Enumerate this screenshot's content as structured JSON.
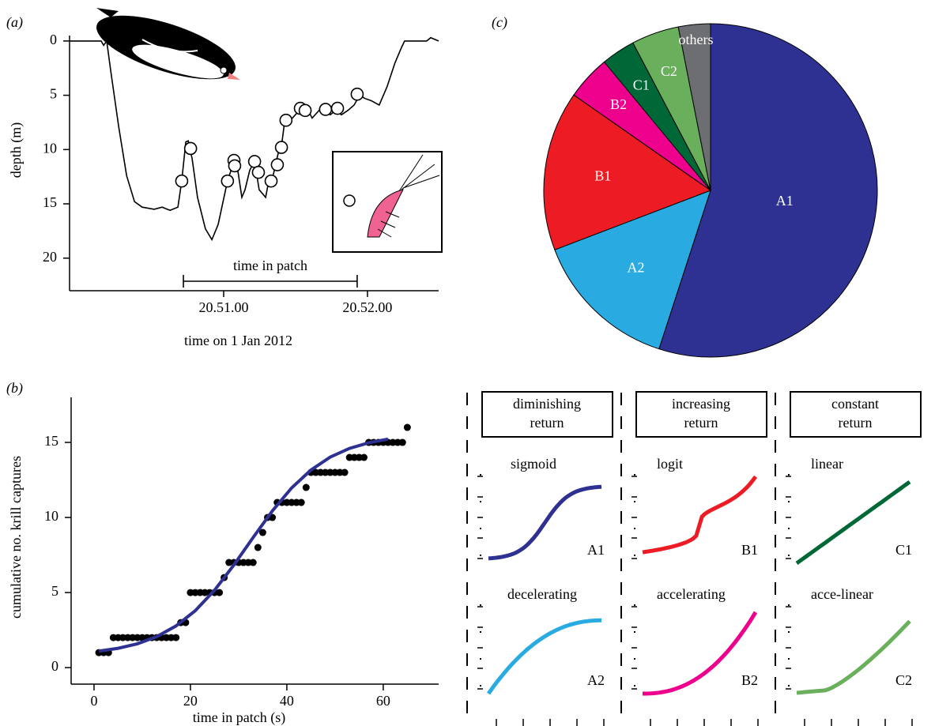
{
  "chart_data": [
    {
      "type": "line",
      "panel_label": "(a)",
      "x_label": "time on 1 Jan 2012",
      "y_label": "depth (m)",
      "y_inverted": true,
      "color": "#000000",
      "xlim": [
        -4.3,
        149.7
      ],
      "ylim": [
        -0.5,
        23
      ],
      "xticks": [
        {
          "value": 60,
          "label": "20.51.00"
        },
        {
          "value": 120,
          "label": "20.52.00"
        }
      ],
      "yticks": [
        0,
        5,
        10,
        15,
        20
      ],
      "x": [
        -4.3,
        8.9,
        9.9,
        11.2,
        12.9,
        16.2,
        19.5,
        22.8,
        26.0,
        31.0,
        34.3,
        37.6,
        40.9,
        42.5,
        44.2,
        45.2,
        46.8,
        49.1,
        52.4,
        55.1,
        57.7,
        61.6,
        64.3,
        65.6,
        67.6,
        68.9,
        70.9,
        72.9,
        74.8,
        77.5,
        78.8,
        80.4,
        82.7,
        84.1,
        85.4,
        86.7,
        88.7,
        90.7,
        92.0,
        93.6,
        95.3,
        96.9,
        100.2,
        102.2,
        104.5,
        107.1,
        109.1,
        111.8,
        114.4,
        116.7,
        119.0,
        121.6,
        124.9,
        128.2,
        131.5,
        134.2,
        135.5,
        144.7,
        146.4,
        149.7
      ],
      "values": [
        0,
        0,
        0.4,
        0,
        2.8,
        7.9,
        12.4,
        14.8,
        15.3,
        15.5,
        15.3,
        15.6,
        15.3,
        12.9,
        9.3,
        9.2,
        10.8,
        14.4,
        17.3,
        18.3,
        16.9,
        12.9,
        11.1,
        11.5,
        14.4,
        13.7,
        11.9,
        11.1,
        13.7,
        14.4,
        12.9,
        12.6,
        10.4,
        9.7,
        7.5,
        7.1,
        7.1,
        6.6,
        6.3,
        6.5,
        6.4,
        7.1,
        6.3,
        6.5,
        6.8,
        6.3,
        6.8,
        6.4,
        5.9,
        5.0,
        5.3,
        5.5,
        5.9,
        4.2,
        2.0,
        0.6,
        0,
        0,
        -0.3,
        0
      ],
      "captures": {
        "x": [
          42.5,
          46.2,
          61.6,
          64.3,
          64.6,
          72.9,
          74.5,
          79.8,
          82.4,
          84.1,
          86.0,
          92.0,
          94.0,
          102.5,
          107.5,
          115.7
        ],
        "values": [
          12.9,
          9.9,
          12.9,
          11.0,
          11.5,
          11.1,
          12.1,
          12.9,
          11.4,
          9.8,
          7.3,
          6.2,
          6.4,
          6.3,
          6.2,
          4.9
        ]
      },
      "annotation": "time in patch",
      "annotation_range": [
        43.2,
        115.7
      ]
    },
    {
      "type": "scatter",
      "panel_label": "(b)",
      "x_label": "time in patch (s)",
      "y_label": "cumulative no. krill captures",
      "color": "#000000",
      "xlim": [
        -4.75,
        71.5
      ],
      "ylim": [
        -1.1,
        18
      ],
      "xticks": [
        0,
        20,
        40,
        60
      ],
      "yticks": [
        0,
        5,
        10,
        15
      ],
      "x": [
        1,
        2,
        3,
        4,
        5,
        6,
        7,
        8,
        9,
        10,
        11,
        12,
        13,
        14,
        15,
        16,
        17,
        18,
        19,
        20,
        21,
        22,
        23,
        24,
        25,
        26,
        27,
        28,
        29,
        30,
        31,
        32,
        33,
        34,
        35,
        36,
        37,
        38,
        39,
        40,
        41,
        42,
        43,
        44,
        45,
        46,
        47,
        48,
        49,
        50,
        51,
        52,
        53,
        54,
        55,
        56,
        57,
        58,
        59,
        60,
        61,
        62,
        63,
        64,
        65
      ],
      "values": [
        1,
        1,
        1,
        2,
        2,
        2,
        2,
        2,
        2,
        2,
        2,
        2,
        2,
        2,
        2,
        2,
        2,
        3,
        3,
        5,
        5,
        5,
        5,
        5,
        5,
        5,
        6,
        7,
        7,
        7,
        7,
        7,
        7,
        8,
        9,
        10,
        10,
        11,
        11,
        11,
        11,
        11,
        11,
        12,
        13,
        13,
        13,
        13,
        13,
        13,
        13,
        13,
        14,
        14,
        14,
        14,
        15,
        15,
        15,
        15,
        15,
        15,
        15,
        15,
        16
      ],
      "fit": {
        "color": "#2e3192",
        "x": [
          1,
          5,
          9,
          13,
          17,
          21,
          25,
          29,
          33,
          37,
          41,
          45,
          49,
          53,
          57,
          61
        ],
        "values": [
          1.1,
          1.29,
          1.59,
          2.06,
          2.77,
          3.79,
          5.15,
          6.83,
          8.66,
          10.44,
          11.97,
          13.16,
          14.02,
          14.6,
          14.98,
          15.22
        ]
      }
    },
    {
      "type": "pie",
      "panel_label": "(c)",
      "categories": [
        "A1",
        "A2",
        "B1",
        "B2",
        "C1",
        "C2",
        "others"
      ],
      "values": [
        55,
        14.2,
        15.5,
        4.3,
        3.3,
        4.6,
        3.1
      ],
      "colors": [
        "#2e3192",
        "#29abe2",
        "#ed1c24",
        "#ec008c",
        "#006837",
        "#6aaf5b",
        "#6d6e71"
      ]
    }
  ],
  "models": {
    "columns": [
      {
        "header": [
          "diminishing",
          "return"
        ],
        "rows": [
          {
            "name": "sigmoid",
            "code": "A1",
            "color": "#2e3192"
          },
          {
            "name": "decelerating",
            "code": "A2",
            "color": "#29abe2"
          }
        ]
      },
      {
        "header": [
          "increasing",
          "return"
        ],
        "rows": [
          {
            "name": "logit",
            "code": "B1",
            "color": "#ed1c24"
          },
          {
            "name": "accelerating",
            "code": "B2",
            "color": "#ec008c"
          }
        ]
      },
      {
        "header": [
          "constant",
          "return"
        ],
        "rows": [
          {
            "name": "linear",
            "code": "C1",
            "color": "#006837"
          },
          {
            "name": "acce-linear",
            "code": "C2",
            "color": "#6aaf5b"
          }
        ]
      }
    ]
  }
}
